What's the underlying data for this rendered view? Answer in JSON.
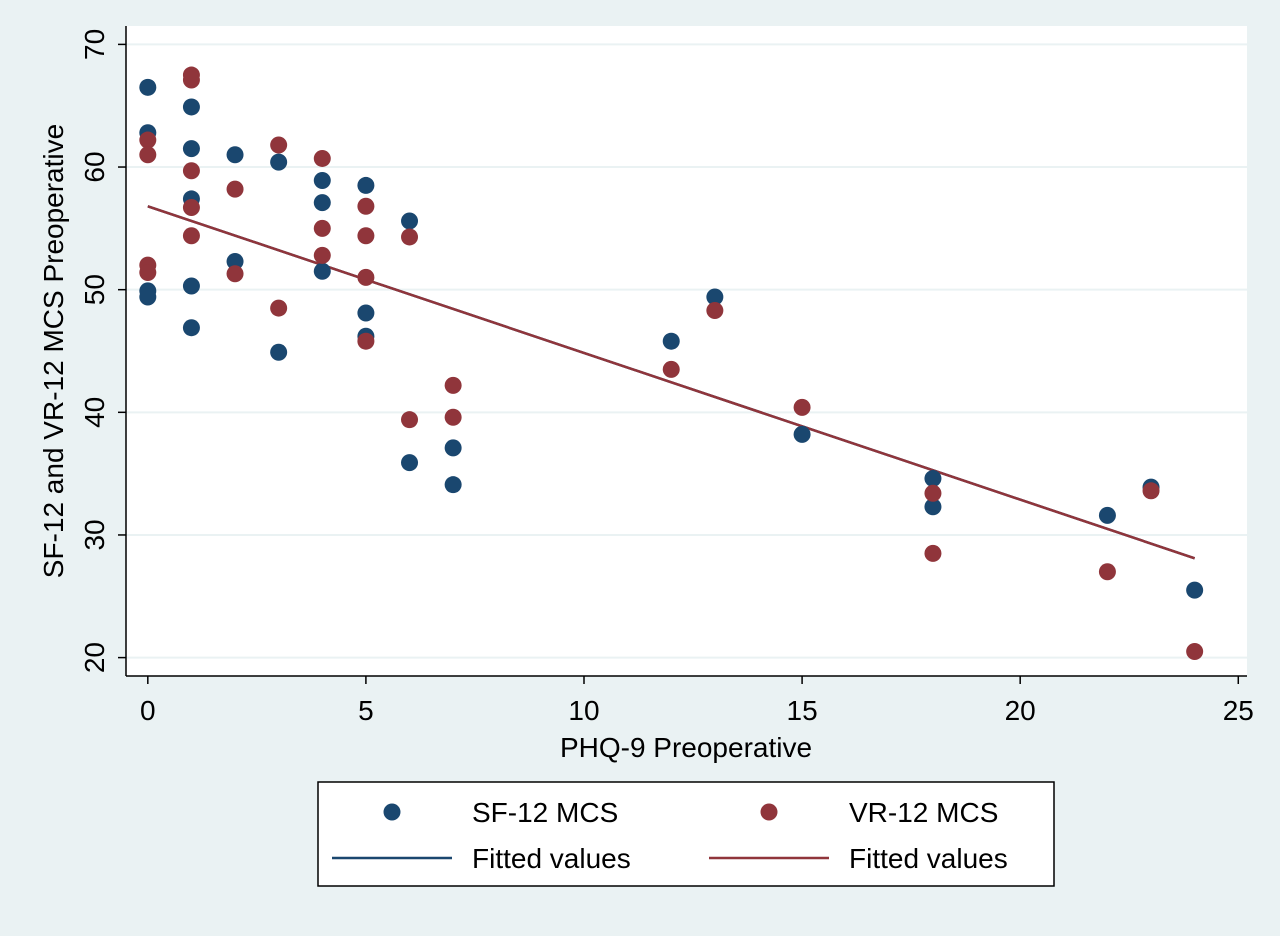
{
  "chart_data": {
    "type": "scatter",
    "xlabel": "PHQ-9 Preoperative",
    "ylabel": "SF-12 and VR-12 MCS Preoperative",
    "xlim": [
      -0.5,
      25.2
    ],
    "ylim": [
      18.5,
      71.5
    ],
    "x_ticks": [
      0,
      5,
      10,
      15,
      20,
      25
    ],
    "y_ticks": [
      20,
      30,
      40,
      50,
      60,
      70
    ],
    "grid": "horizontal",
    "legend_position": "bottom",
    "series": [
      {
        "name": "SF-12 MCS",
        "kind": "scatter",
        "color": "#1a476f",
        "points": [
          [
            0,
            66.5
          ],
          [
            0,
            62.8
          ],
          [
            0,
            49.9
          ],
          [
            0,
            49.4
          ],
          [
            1,
            64.9
          ],
          [
            1,
            61.5
          ],
          [
            1,
            57.4
          ],
          [
            1,
            50.3
          ],
          [
            1,
            46.9
          ],
          [
            2,
            61.0
          ],
          [
            2,
            52.3
          ],
          [
            3,
            60.4
          ],
          [
            3,
            44.9
          ],
          [
            4,
            58.9
          ],
          [
            4,
            57.1
          ],
          [
            4,
            51.5
          ],
          [
            5,
            58.5
          ],
          [
            5,
            48.1
          ],
          [
            5,
            46.2
          ],
          [
            6,
            55.6
          ],
          [
            6,
            35.9
          ],
          [
            7,
            37.1
          ],
          [
            7,
            34.1
          ],
          [
            12,
            45.8
          ],
          [
            13,
            49.4
          ],
          [
            15,
            38.2
          ],
          [
            18,
            34.6
          ],
          [
            18,
            32.3
          ],
          [
            22,
            31.6
          ],
          [
            23,
            33.9
          ],
          [
            24,
            25.5
          ]
        ]
      },
      {
        "name": "VR-12 MCS",
        "kind": "scatter",
        "color": "#90353b",
        "points": [
          [
            0,
            62.2
          ],
          [
            0,
            61.0
          ],
          [
            0,
            52.0
          ],
          [
            0,
            51.4
          ],
          [
            1,
            67.5
          ],
          [
            1,
            67.1
          ],
          [
            1,
            59.7
          ],
          [
            1,
            56.7
          ],
          [
            1,
            54.4
          ],
          [
            2,
            58.2
          ],
          [
            2,
            51.3
          ],
          [
            3,
            61.8
          ],
          [
            3,
            48.5
          ],
          [
            4,
            60.7
          ],
          [
            4,
            55.0
          ],
          [
            4,
            52.8
          ],
          [
            5,
            56.8
          ],
          [
            5,
            54.4
          ],
          [
            5,
            51.0
          ],
          [
            5,
            45.8
          ],
          [
            6,
            54.3
          ],
          [
            6,
            39.4
          ],
          [
            7,
            42.2
          ],
          [
            7,
            39.6
          ],
          [
            12,
            43.5
          ],
          [
            13,
            48.3
          ],
          [
            15,
            40.4
          ],
          [
            18,
            33.4
          ],
          [
            18,
            28.5
          ],
          [
            22,
            27.0
          ],
          [
            23,
            33.6
          ],
          [
            24,
            20.5
          ]
        ]
      },
      {
        "name": "Fitted values",
        "kind": "line",
        "color": "#1a476f",
        "points": [
          [
            0,
            56.8
          ],
          [
            24,
            28.1
          ]
        ]
      },
      {
        "name": "Fitted values",
        "kind": "line",
        "color": "#90353b",
        "points": [
          [
            0,
            56.8
          ],
          [
            24,
            28.1
          ]
        ]
      }
    ]
  }
}
